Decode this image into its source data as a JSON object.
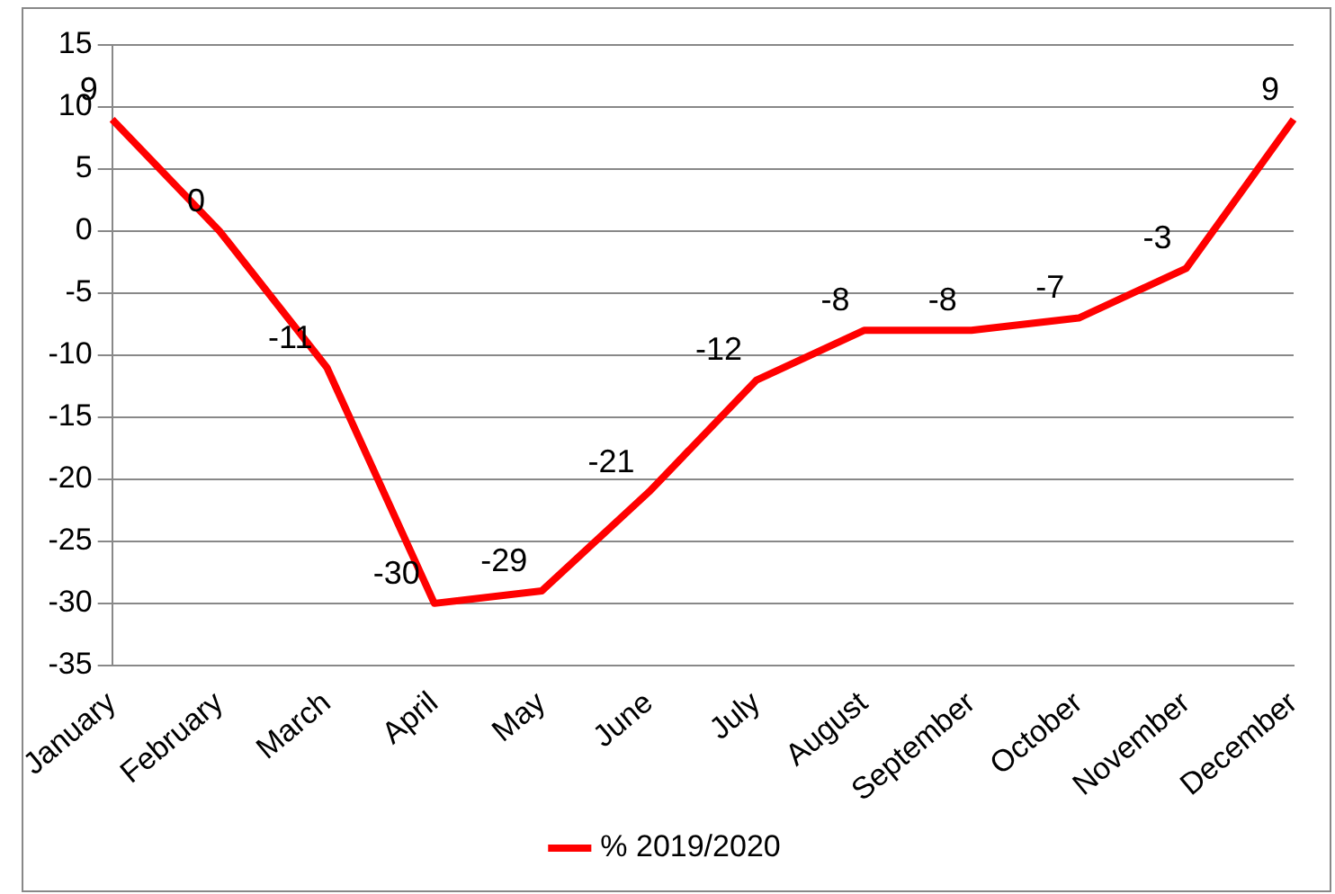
{
  "chart_data": {
    "type": "line",
    "categories": [
      "January",
      "February",
      "March",
      "April",
      "May",
      "June",
      "July",
      "August",
      "September",
      "October",
      "November",
      "December"
    ],
    "series": [
      {
        "name": "% 2019/2020",
        "color": "#ff0000",
        "values": [
          9,
          0,
          -11,
          -30,
          -29,
          -21,
          -12,
          -8,
          -8,
          -7,
          -3,
          9
        ]
      }
    ],
    "ylim": [
      -35,
      15
    ],
    "yticks": [
      -35,
      -30,
      -25,
      -20,
      -15,
      -10,
      -5,
      0,
      5,
      10,
      15
    ],
    "grid": "y",
    "legend": "bottom",
    "data_labels": true,
    "marker": "none",
    "line_style": "solid"
  }
}
